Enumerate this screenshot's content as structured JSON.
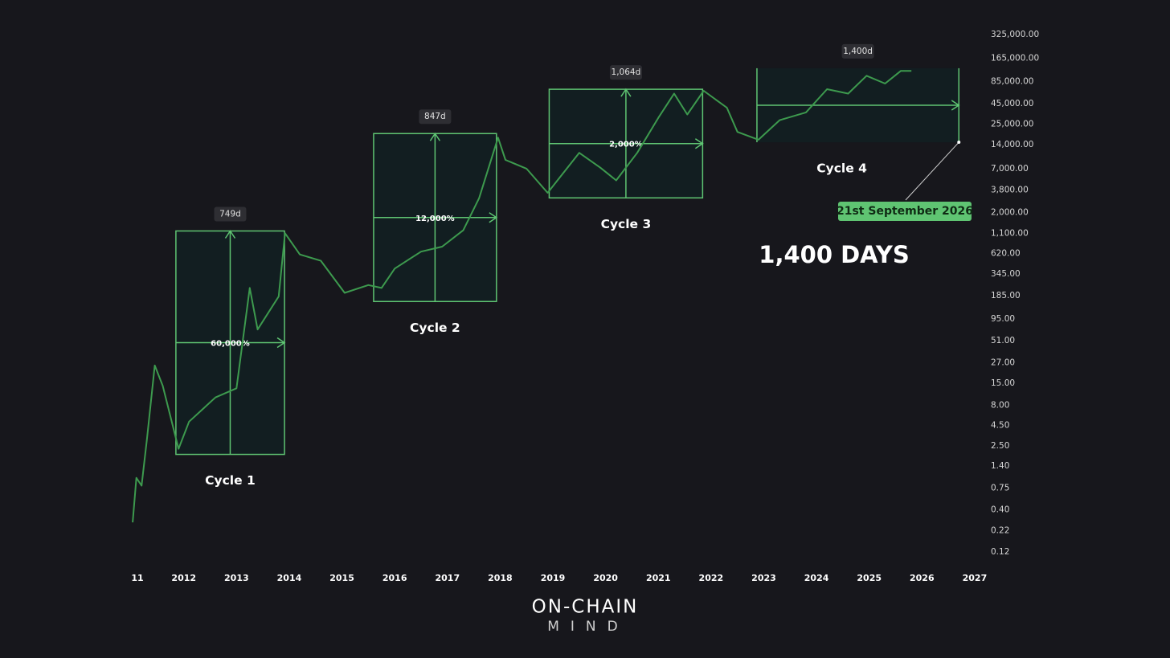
{
  "chart_data": {
    "type": "line",
    "log_scale": true,
    "xlim": [
      2010.8,
      2027.26
    ],
    "ylim": [
      0.0707,
      552000
    ],
    "xticks": [
      {
        "value": 2011,
        "label": "11"
      },
      2012,
      2013,
      2014,
      2015,
      2016,
      2017,
      2018,
      2019,
      2020,
      2021,
      2022,
      2023,
      2024,
      2025,
      2026,
      2027
    ],
    "yticks": [
      {
        "value": 325000,
        "label": "325,000.00"
      },
      {
        "value": 165000,
        "label": "165,000.00"
      },
      {
        "value": 85000,
        "label": "85,000.00"
      },
      {
        "value": 45000,
        "label": "45,000.00"
      },
      {
        "value": 25000,
        "label": "25,000.00"
      },
      {
        "value": 14000,
        "label": "14,000.00"
      },
      {
        "value": 7000,
        "label": "7,000.00"
      },
      {
        "value": 3800,
        "label": "3,800.00"
      },
      {
        "value": 2000,
        "label": "2,000.00"
      },
      {
        "value": 1100,
        "label": "1,100.00"
      },
      {
        "value": 620,
        "label": "620.00"
      },
      {
        "value": 345,
        "label": "345.00"
      },
      {
        "value": 185,
        "label": "185.00"
      },
      {
        "value": 95,
        "label": "95.00"
      },
      {
        "value": 51,
        "label": "51.00"
      },
      {
        "value": 27,
        "label": "27.00"
      },
      {
        "value": 15,
        "label": "15.00"
      },
      {
        "value": 8,
        "label": "8.00"
      },
      {
        "value": 4.5,
        "label": "4.50"
      },
      {
        "value": 2.5,
        "label": "2.50"
      },
      {
        "value": 1.4,
        "label": "1.40"
      },
      {
        "value": 0.75,
        "label": "0.75"
      },
      {
        "value": 0.4,
        "label": "0.40"
      },
      {
        "value": 0.22,
        "label": "0.22"
      },
      {
        "value": 0.12,
        "label": "0.12"
      }
    ],
    "x": [
      2011.03,
      2011.1,
      2011.2,
      2011.3,
      2011.45,
      2011.6,
      2011.9,
      2012.1,
      2012.6,
      2013.0,
      2013.25,
      2013.4,
      2013.8,
      2013.92,
      2014.2,
      2014.6,
      2015.05,
      2015.5,
      2015.75,
      2016.0,
      2016.5,
      2016.9,
      2017.3,
      2017.6,
      2017.96,
      2018.1,
      2018.5,
      2018.9,
      2019.5,
      2019.9,
      2020.2,
      2020.6,
      2021.0,
      2021.3,
      2021.55,
      2021.86,
      2022.3,
      2022.5,
      2022.9,
      2023.3,
      2023.8,
      2024.2,
      2024.6,
      2024.95,
      2025.3,
      2025.6,
      2025.8
    ],
    "series": [
      {
        "color": "#3d9a4e",
        "values": [
          0.28,
          1.0,
          0.8,
          3,
          25,
          14,
          2.3,
          5,
          10,
          13,
          230,
          70,
          180,
          1100,
          600,
          500,
          200,
          250,
          230,
          400,
          650,
          750,
          1200,
          3000,
          17000,
          9000,
          7000,
          3500,
          11000,
          7200,
          5000,
          11000,
          30000,
          60000,
          33000,
          65000,
          40000,
          20000,
          16000,
          28000,
          35000,
          68000,
          60000,
          100000,
          80000,
          115000,
          115000
        ]
      }
    ],
    "box_color": "#5fc472",
    "cycles": [
      {
        "name": "Cycle 1",
        "duration": "749d",
        "gain": "60,000%",
        "start": 2011.85,
        "end": 2013.91,
        "low": 1.96,
        "high": 1175
      },
      {
        "name": "Cycle 2",
        "duration": "847d",
        "gain": "12,000%",
        "start": 2015.6,
        "end": 2017.93,
        "low": 156,
        "high": 19100
      },
      {
        "name": "Cycle 3",
        "duration": "1,064d",
        "gain": "2,000%",
        "start": 2018.93,
        "end": 2021.84,
        "low": 3030,
        "high": 67900
      },
      {
        "name": "Cycle 4",
        "duration": "1,400d",
        "start": 2022.87,
        "end": 2026.7,
        "low": 14900,
        "high": 124000
      }
    ],
    "target_label": "21st September 2026",
    "headline": "1,400 DAYS",
    "brand": {
      "line1": "ON-CHAIN",
      "line2": "MIND"
    }
  }
}
